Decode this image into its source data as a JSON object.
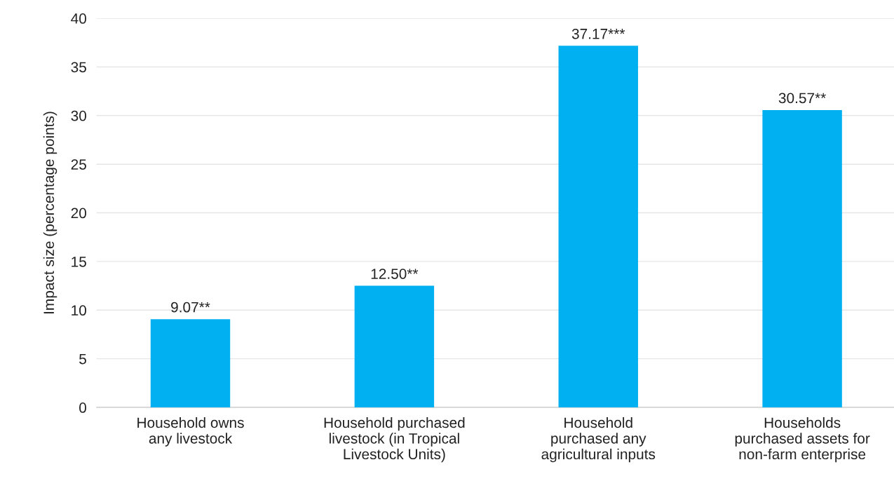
{
  "chart_data": {
    "type": "bar",
    "ylabel": "Impact size (percentage points)",
    "categories": [
      "Household owns\nany livestock",
      "Household purchased\nlivestock (in Tropical\nLivestock Units)",
      "Household\npurchased any\nagricultural inputs",
      "Households\npurchased assets for\nnon-farm enterprise"
    ],
    "values": [
      9.07,
      12.5,
      37.17,
      30.57
    ],
    "value_labels": [
      "9.07**",
      "12.50**",
      "37.17***",
      "30.57**"
    ],
    "color": "#00b0f0",
    "ylim": [
      0,
      40
    ],
    "yticks": [
      0,
      5,
      10,
      15,
      20,
      25,
      30,
      35,
      40
    ],
    "grid": "y"
  }
}
